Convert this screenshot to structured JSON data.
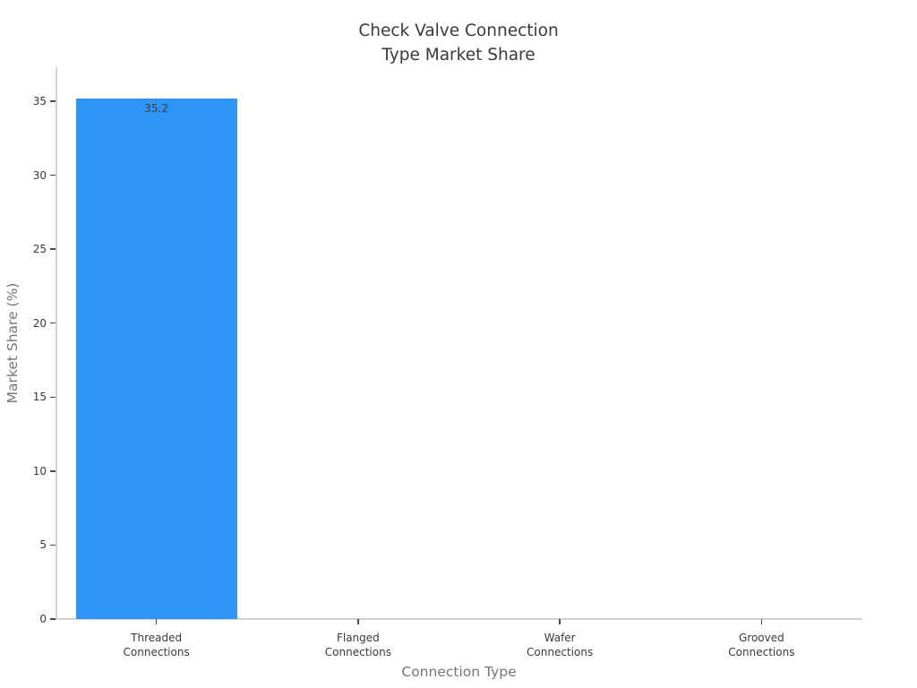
{
  "page": {
    "background_color": "#ffffff"
  },
  "chart_data": {
    "type": "bar",
    "title": "Check Valve Connection\nType Market Share",
    "xlabel": "Connection Type",
    "ylabel": "Market Share (%)",
    "categories": [
      "Threaded\nConnections",
      "Flanged\nConnections",
      "Wafer\nConnections",
      "Grooved\nConnections"
    ],
    "values": [
      35.2,
      0,
      0,
      0
    ],
    "value_labels": [
      "35.2",
      "",
      "",
      ""
    ],
    "yticks": [
      0,
      5,
      10,
      15,
      20,
      25,
      30,
      35
    ],
    "ylim": [
      0,
      37.3
    ],
    "grid": false,
    "legend": null,
    "bar_color": "#2e94f5",
    "title_color": "#3a3a3a",
    "axis_title_color": "#767676",
    "tick_label_color": "#3a3a3a",
    "spine_color": "#d2d2d2",
    "tick_mark_color": "#4a4a4a",
    "bar_width_fraction": 0.8
  }
}
